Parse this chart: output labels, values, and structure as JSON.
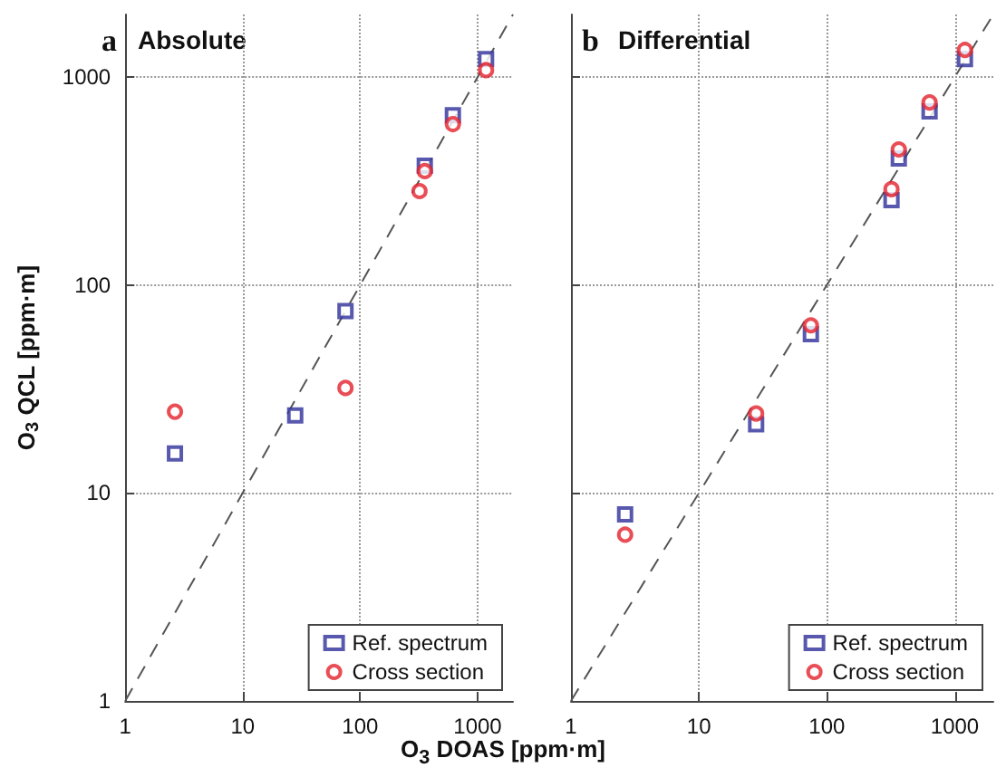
{
  "chart_data": [
    {
      "type": "scatter",
      "title": "a Absolute",
      "xlabel": "O$_{3}$ DOAS [ppm·m]",
      "ylabel": "O$_{3}$ QCL [ppm·m]",
      "log": "xy",
      "xlim": [
        1,
        2000
      ],
      "ylim": [
        1,
        2000
      ],
      "xticks": [
        1,
        10,
        100,
        1000
      ],
      "yticks": [
        1,
        10,
        100,
        1000
      ],
      "grid": true,
      "legend": "bottom right",
      "x": [
        2.65,
        28,
        75,
        320,
        355,
        616,
        1180
      ],
      "series": [
        {
          "name": "Ref. spectrum",
          "color": "#2e2e9a",
          "marker": "square",
          "values": [
            15.5,
            23.6,
            75,
            null,
            375,
            656,
            1220
          ]
        },
        {
          "name": "Cross section",
          "color": "#e3202a",
          "marker": "circle",
          "values": [
            24.6,
            null,
            32,
            283,
            353,
            594,
            1080
          ]
        },
        {
          "type": "line",
          "color": "#555555",
          "line_style": "dashed",
          "marker": "none",
          "x": [
            1,
            100,
            2000
          ],
          "values": [
            1,
            100,
            2000
          ]
        }
      ]
    },
    {
      "type": "scatter",
      "title": "b Differential",
      "log": "xy",
      "xlim": [
        1,
        2000
      ],
      "ylim": [
        1,
        2000
      ],
      "xticks": [
        1,
        10,
        100,
        1000
      ],
      "yticks": [
        1,
        10,
        100,
        1000
      ],
      "grid": true,
      "legend": "bottom right",
      "tick_labels": "x",
      "x": [
        2.65,
        28,
        75,
        320,
        365,
        635,
        1200
      ],
      "series": [
        {
          "name": "Ref. spectrum",
          "color": "#2e2e9a",
          "marker": "square",
          "values": [
            7.9,
            21.4,
            58,
            256,
            406,
            684,
            1220
          ]
        },
        {
          "name": "Cross section",
          "color": "#e3202a",
          "marker": "circle",
          "values": [
            6.3,
            24.1,
            64,
            289,
            449,
            755,
            1350
          ]
        },
        {
          "type": "line",
          "color": "#555555",
          "line_style": "dashed",
          "marker": "none",
          "x": [
            1,
            100,
            2000
          ],
          "values": [
            1,
            100,
            2000
          ]
        }
      ]
    }
  ]
}
